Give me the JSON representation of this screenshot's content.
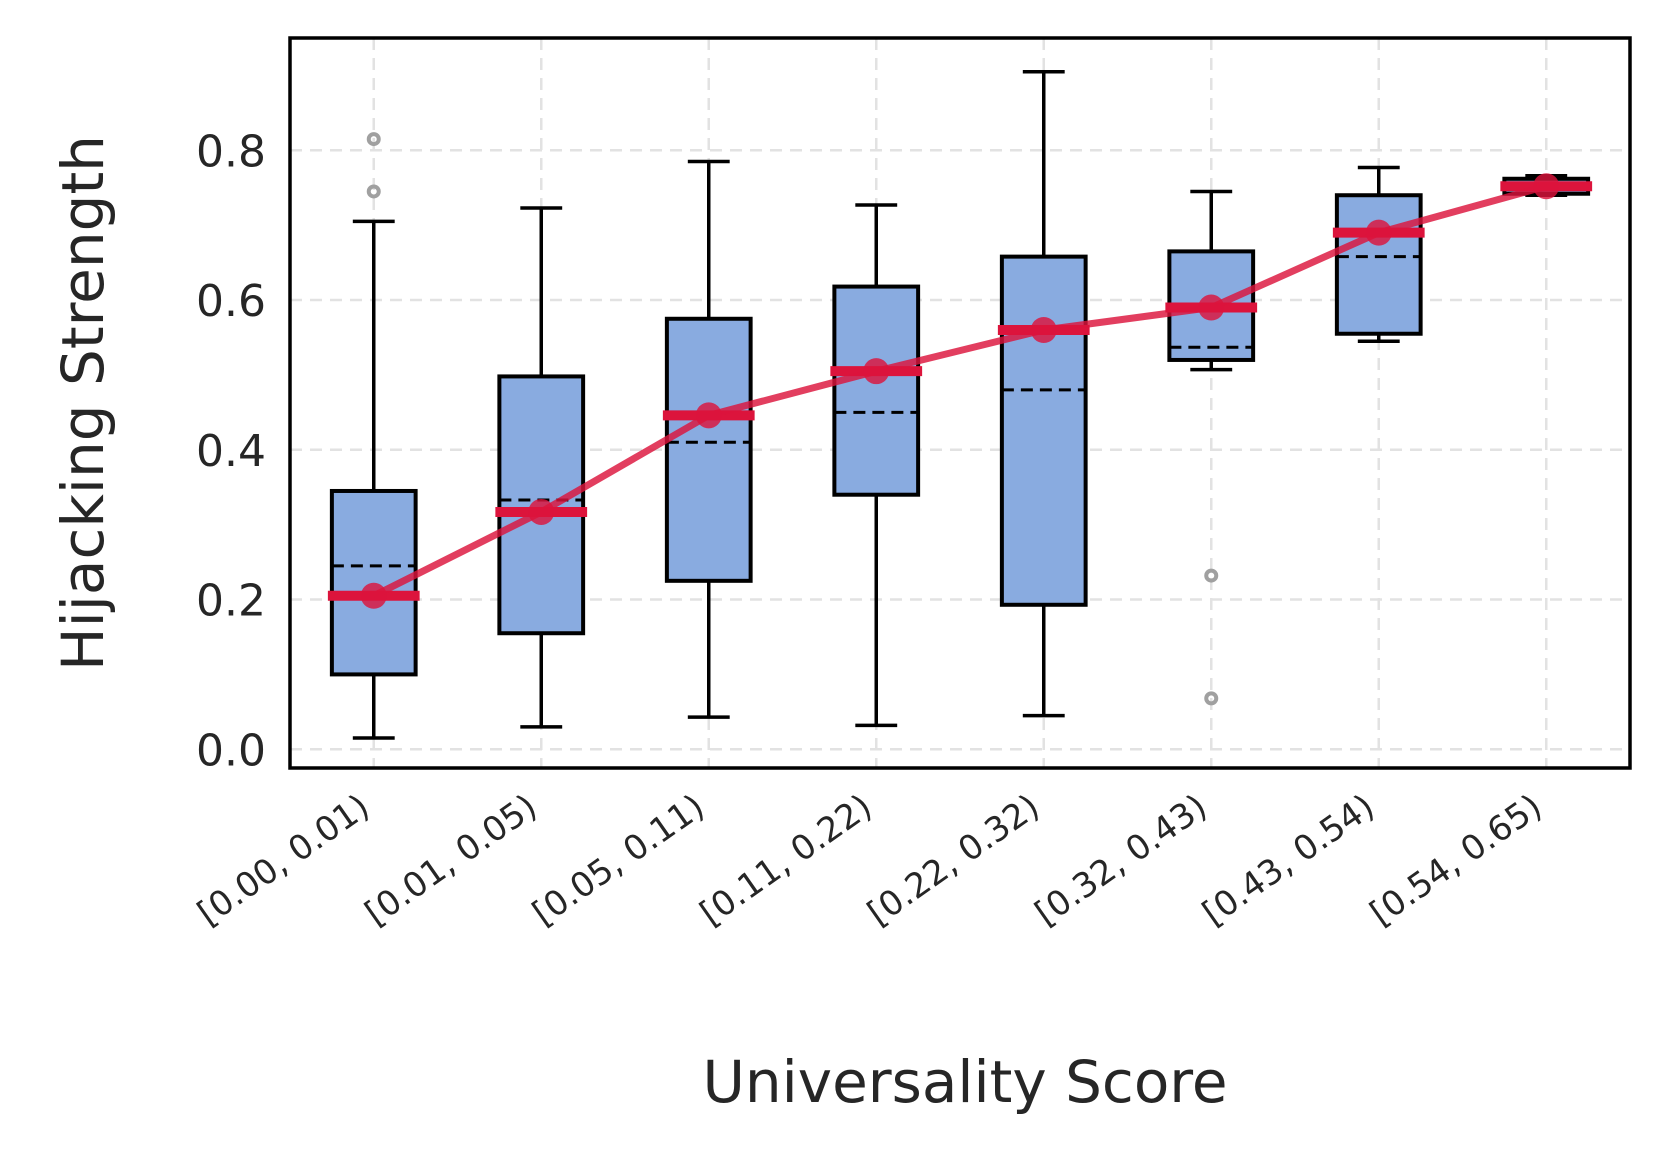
{
  "chart_data": {
    "type": "box",
    "xlabel": "Universality Score",
    "ylabel": "Hijacking Strength",
    "ylim": [
      -0.025,
      0.95
    ],
    "yticks": [
      "0.0",
      "0.2",
      "0.4",
      "0.6",
      "0.8"
    ],
    "ytick_values": [
      0.0,
      0.2,
      0.4,
      0.6,
      0.8
    ],
    "categories": [
      "[0.00, 0.01)",
      "[0.01, 0.05)",
      "[0.05, 0.11)",
      "[0.11, 0.22)",
      "[0.22, 0.32)",
      "[0.32, 0.43)",
      "[0.43, 0.54)",
      "[0.54, 0.65)"
    ],
    "boxes": [
      {
        "whisker_low": 0.015,
        "q1": 0.1,
        "median": 0.205,
        "mean": 0.245,
        "q3": 0.345,
        "whisker_high": 0.705,
        "outliers": [
          0.745,
          0.815
        ]
      },
      {
        "whisker_low": 0.03,
        "q1": 0.155,
        "median": 0.317,
        "mean": 0.333,
        "q3": 0.498,
        "whisker_high": 0.723,
        "outliers": []
      },
      {
        "whisker_low": 0.043,
        "q1": 0.225,
        "median": 0.446,
        "mean": 0.41,
        "q3": 0.575,
        "whisker_high": 0.785,
        "outliers": []
      },
      {
        "whisker_low": 0.032,
        "q1": 0.34,
        "median": 0.505,
        "mean": 0.45,
        "q3": 0.618,
        "whisker_high": 0.727,
        "outliers": []
      },
      {
        "whisker_low": 0.045,
        "q1": 0.193,
        "median": 0.56,
        "mean": 0.48,
        "q3": 0.658,
        "whisker_high": 0.905,
        "outliers": []
      },
      {
        "whisker_low": 0.507,
        "q1": 0.52,
        "median": 0.59,
        "mean": 0.537,
        "q3": 0.665,
        "whisker_high": 0.745,
        "outliers": [
          0.068,
          0.232
        ]
      },
      {
        "whisker_low": 0.545,
        "q1": 0.555,
        "median": 0.69,
        "mean": 0.658,
        "q3": 0.74,
        "whisker_high": 0.777,
        "outliers": []
      },
      {
        "whisker_low": 0.74,
        "q1": 0.742,
        "median": 0.752,
        "mean": 0.752,
        "q3": 0.762,
        "whisker_high": 0.766,
        "outliers": []
      }
    ],
    "median_line": [
      0.205,
      0.317,
      0.446,
      0.505,
      0.56,
      0.59,
      0.69,
      0.752
    ],
    "grid": true,
    "colors": {
      "box_fill": "#89abe0",
      "box_edge": "#000000",
      "trend": "#dc143c",
      "outlier": "#a0a0a0",
      "grid": "#e2e2e2"
    }
  }
}
